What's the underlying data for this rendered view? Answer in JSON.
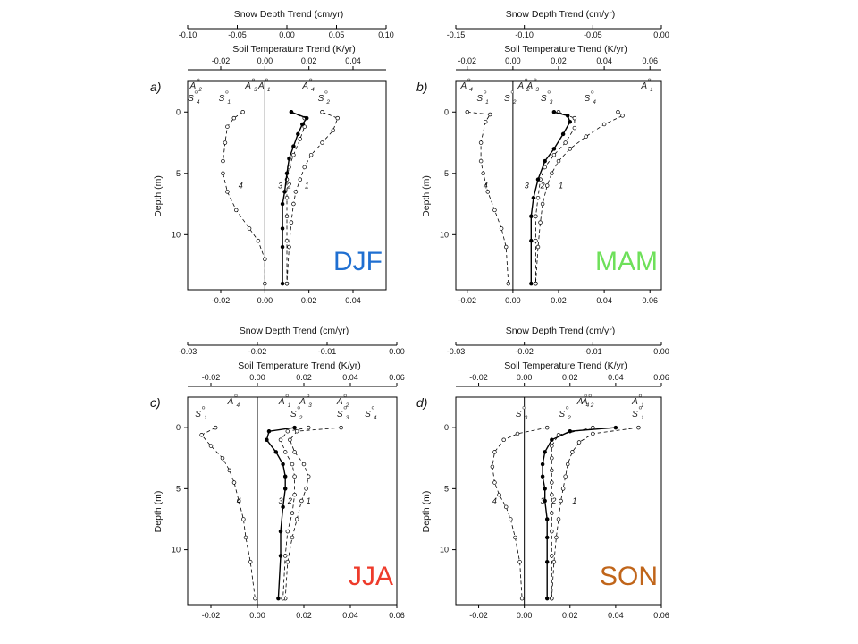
{
  "chart_data": [
    {
      "type": "line",
      "panel_label": "a)",
      "season_label": "DJF",
      "season_color": "#1f6fd1",
      "top_axis_1": {
        "title": "Snow Depth Trend  (cm/yr)",
        "ticks": [
          "-0.10",
          "-0.05",
          "0.00",
          "0.05",
          "0.10"
        ],
        "range": [
          -0.1,
          0.1
        ]
      },
      "top_axis_2": {
        "title": "Soil Temperature Trend  (K/yr)",
        "ticks": [
          "-0.02",
          "0.00",
          "0.02",
          "0.04"
        ],
        "range": [
          -0.035,
          0.055
        ]
      },
      "bottom_axis": {
        "ticks": [
          "-0.02",
          "0.00",
          "0.02",
          "0.04"
        ],
        "range": [
          -0.035,
          0.055
        ]
      },
      "ylabel": "Depth  (m)",
      "y_ticks": [
        "0",
        "5",
        "10"
      ],
      "ylim": [
        -2.5,
        14.5
      ],
      "curve_labels": [
        "4",
        "3",
        "2",
        "1"
      ],
      "curve_label_pos": [
        {
          "x": -0.011,
          "y": 6
        },
        {
          "x": 0.007,
          "y": 6
        },
        {
          "x": 0.011,
          "y": 6
        },
        {
          "x": 0.019,
          "y": 6
        }
      ],
      "series": [
        {
          "name": "1",
          "dashed": true,
          "filled": false,
          "x": [
            0.026,
            0.033,
            0.031,
            0.026,
            0.021,
            0.018,
            0.016,
            0.014,
            0.013,
            0.012,
            0.011,
            0.01
          ],
          "y": [
            0,
            0.5,
            1.5,
            2.5,
            3.5,
            4.5,
            5.5,
            6.5,
            7.5,
            9,
            11,
            14
          ]
        },
        {
          "name": "2",
          "dashed": true,
          "filled": false,
          "x": [
            0.012,
            0.018,
            0.018,
            0.016,
            0.013,
            0.011,
            0.01,
            0.01,
            0.01,
            0.01,
            0.01
          ],
          "y": [
            0,
            0.5,
            1.2,
            2.2,
            3.5,
            4.5,
            5.5,
            7,
            8.5,
            10.5,
            14
          ]
        },
        {
          "name": "3",
          "dashed": false,
          "filled": true,
          "x": [
            0.012,
            0.019,
            0.017,
            0.015,
            0.013,
            0.011,
            0.01,
            0.009,
            0.008,
            0.008,
            0.008,
            0.008
          ],
          "y": [
            0,
            0.5,
            1,
            1.8,
            2.8,
            3.8,
            5,
            6.5,
            7.5,
            9.5,
            11,
            14
          ]
        },
        {
          "name": "4",
          "dashed": true,
          "filled": false,
          "x": [
            -0.01,
            -0.014,
            -0.017,
            -0.018,
            -0.019,
            -0.019,
            -0.017,
            -0.013,
            -0.007,
            -0.003,
            0.0,
            0.0
          ],
          "y": [
            0,
            0.5,
            1.2,
            2.5,
            4,
            5,
            6.5,
            8,
            9.5,
            10.5,
            12,
            14
          ]
        }
      ],
      "markers": [
        {
          "label": "A",
          "sub": "2",
          "x": -0.031,
          "y": -1.9
        },
        {
          "label": "A",
          "sub": "3",
          "x": -0.006,
          "y": -1.9
        },
        {
          "label": "A",
          "sub": "1",
          "x": 0.0,
          "y": -1.9
        },
        {
          "label": "A",
          "sub": "4",
          "x": 0.02,
          "y": -1.9
        },
        {
          "label": "S",
          "sub": "4",
          "x": -0.032,
          "y": -0.9
        },
        {
          "label": "S",
          "sub": "1",
          "x": -0.018,
          "y": -0.9
        },
        {
          "label": "S",
          "sub": "2",
          "x": 0.027,
          "y": -0.9
        }
      ]
    },
    {
      "type": "line",
      "panel_label": "b)",
      "season_label": "MAM",
      "season_color": "#6ee05a",
      "top_axis_1": {
        "title": "Snow Depth Trend  (cm/yr)",
        "ticks": [
          "-0.15",
          "-0.10",
          "-0.05",
          "0.00"
        ],
        "range": [
          -0.15,
          0.0
        ]
      },
      "top_axis_2": {
        "title": "Soil Temperature Trend  (K/yr)",
        "ticks": [
          "-0.02",
          "0.00",
          "0.02",
          "0.04",
          "0.06"
        ],
        "range": [
          -0.025,
          0.065
        ]
      },
      "bottom_axis": {
        "ticks": [
          "-0.02",
          "0.00",
          "0.02",
          "0.04",
          "0.06"
        ],
        "range": [
          -0.025,
          0.065
        ]
      },
      "ylabel": "Depth  (m)",
      "y_ticks": [
        "0",
        "5",
        "10"
      ],
      "ylim": [
        -2.5,
        14.5
      ],
      "curve_labels": [
        "4",
        "3",
        "2",
        "1"
      ],
      "curve_label_pos": [
        {
          "x": -0.012,
          "y": 6
        },
        {
          "x": 0.006,
          "y": 6
        },
        {
          "x": 0.013,
          "y": 6
        },
        {
          "x": 0.021,
          "y": 6
        }
      ],
      "series": [
        {
          "name": "1",
          "dashed": true,
          "filled": false,
          "x": [
            0.046,
            0.048,
            0.04,
            0.032,
            0.025,
            0.02,
            0.017,
            0.015,
            0.013,
            0.012,
            0.011,
            0.01
          ],
          "y": [
            0,
            0.3,
            1,
            2,
            3,
            4,
            5,
            6,
            7.5,
            9,
            11,
            14
          ]
        },
        {
          "name": "2",
          "dashed": true,
          "filled": false,
          "x": [
            0.02,
            0.027,
            0.027,
            0.023,
            0.018,
            0.014,
            0.012,
            0.011,
            0.01,
            0.01,
            0.01
          ],
          "y": [
            0,
            0.5,
            1.3,
            2.5,
            3.5,
            4.5,
            5.5,
            7,
            8.5,
            10.5,
            14
          ]
        },
        {
          "name": "3",
          "dashed": false,
          "filled": true,
          "x": [
            0.018,
            0.024,
            0.025,
            0.022,
            0.018,
            0.014,
            0.011,
            0.009,
            0.008,
            0.008,
            0.008
          ],
          "y": [
            0,
            0.3,
            0.8,
            1.8,
            3,
            4,
            5.5,
            7,
            8.5,
            10.5,
            14
          ]
        },
        {
          "name": "4",
          "dashed": true,
          "filled": false,
          "x": [
            -0.02,
            -0.01,
            -0.012,
            -0.014,
            -0.014,
            -0.013,
            -0.011,
            -0.008,
            -0.005,
            -0.003,
            -0.002
          ],
          "y": [
            0,
            0.2,
            0.8,
            2.5,
            4,
            5,
            6.5,
            8,
            9.5,
            11,
            14
          ]
        }
      ],
      "markers": [
        {
          "label": "A",
          "sub": "4",
          "x": -0.02,
          "y": -1.9
        },
        {
          "label": "A",
          "sub": "2",
          "x": 0.005,
          "y": -1.9
        },
        {
          "label": "A",
          "sub": "3",
          "x": 0.009,
          "y": -1.9
        },
        {
          "label": "A",
          "sub": "1",
          "x": 0.059,
          "y": -1.9
        },
        {
          "label": "S",
          "sub": "1",
          "x": -0.013,
          "y": -0.9
        },
        {
          "label": "S",
          "sub": "2",
          "x": -0.001,
          "y": -0.9
        },
        {
          "label": "S",
          "sub": "3",
          "x": 0.015,
          "y": -0.9
        },
        {
          "label": "S",
          "sub": "4",
          "x": 0.034,
          "y": -0.9
        }
      ]
    },
    {
      "type": "line",
      "panel_label": "c)",
      "season_label": "JJA",
      "season_color": "#ee3b2b",
      "top_axis_1": {
        "title": "Snow Depth Trend  (cm/yr)",
        "ticks": [
          "-0.03",
          "-0.02",
          "-0.01",
          "0.00"
        ],
        "range": [
          -0.03,
          0.0
        ]
      },
      "top_axis_2": {
        "title": "Soil Temperature Trend  (K/yr)",
        "ticks": [
          "-0.02",
          "0.00",
          "0.02",
          "0.04",
          "0.06"
        ],
        "range": [
          -0.03,
          0.06
        ]
      },
      "bottom_axis": {
        "ticks": [
          "-0.02",
          "0.00",
          "0.02",
          "0.04",
          "0.06"
        ],
        "range": [
          -0.03,
          0.06
        ]
      },
      "ylabel": "Depth  (m)",
      "y_ticks": [
        "0",
        "5",
        "10"
      ],
      "ylim": [
        -2.5,
        14.5
      ],
      "curve_labels": [
        "4",
        "3",
        "2",
        "1"
      ],
      "curve_label_pos": [
        {
          "x": -0.008,
          "y": 6
        },
        {
          "x": 0.01,
          "y": 6
        },
        {
          "x": 0.014,
          "y": 6
        },
        {
          "x": 0.022,
          "y": 6
        }
      ],
      "series": [
        {
          "name": "1",
          "dashed": true,
          "filled": false,
          "x": [
            0.036,
            0.017,
            0.014,
            0.016,
            0.02,
            0.022,
            0.021,
            0.019,
            0.017,
            0.015,
            0.013,
            0.012
          ],
          "y": [
            0,
            0.3,
            1,
            2,
            3,
            4,
            5,
            6,
            7.5,
            9,
            11,
            14
          ]
        },
        {
          "name": "2",
          "dashed": true,
          "filled": false,
          "x": [
            0.022,
            0.013,
            0.01,
            0.012,
            0.015,
            0.016,
            0.016,
            0.015,
            0.013,
            0.012,
            0.011
          ],
          "y": [
            0,
            0.3,
            1,
            2,
            3,
            4,
            5.5,
            7,
            8.5,
            10.5,
            14
          ]
        },
        {
          "name": "3",
          "dashed": false,
          "filled": true,
          "x": [
            0.016,
            0.005,
            0.004,
            0.008,
            0.011,
            0.012,
            0.012,
            0.011,
            0.01,
            0.01,
            0.009
          ],
          "y": [
            0,
            0.3,
            1,
            2,
            3,
            4,
            5,
            6.5,
            8.5,
            10.5,
            14
          ]
        },
        {
          "name": "4",
          "dashed": true,
          "filled": false,
          "x": [
            -0.018,
            -0.024,
            -0.02,
            -0.015,
            -0.012,
            -0.01,
            -0.008,
            -0.006,
            -0.005,
            -0.003,
            -0.001
          ],
          "y": [
            0,
            0.6,
            1.5,
            2.5,
            3.5,
            4.5,
            6,
            7.5,
            9,
            11,
            14
          ]
        }
      ],
      "markers": [
        {
          "label": "A",
          "sub": "4",
          "x": -0.01,
          "y": -1.9
        },
        {
          "label": "A",
          "sub": "1",
          "x": 0.012,
          "y": -1.9
        },
        {
          "label": "A",
          "sub": "3",
          "x": 0.021,
          "y": -1.9
        },
        {
          "label": "A",
          "sub": "2",
          "x": 0.037,
          "y": -1.9
        },
        {
          "label": "S",
          "sub": "1",
          "x": -0.024,
          "y": -0.9
        },
        {
          "label": "S",
          "sub": "2",
          "x": 0.017,
          "y": -0.9
        },
        {
          "label": "S",
          "sub": "3",
          "x": 0.037,
          "y": -0.9
        },
        {
          "label": "S",
          "sub": "4",
          "x": 0.049,
          "y": -0.9
        }
      ]
    },
    {
      "type": "line",
      "panel_label": "d)",
      "season_label": "SON",
      "season_color": "#c0651a",
      "top_axis_1": {
        "title": "Snow Depth Trend  (cm/yr)",
        "ticks": [
          "-0.03",
          "-0.02",
          "-0.01",
          "0.00"
        ],
        "range": [
          -0.03,
          0.0
        ]
      },
      "top_axis_2": {
        "title": "Soil Temperature Trend  (K/yr)",
        "ticks": [
          "-0.02",
          "0.00",
          "0.02",
          "0.04",
          "0.06"
        ],
        "range": [
          -0.03,
          0.06
        ]
      },
      "bottom_axis": {
        "ticks": [
          "-0.02",
          "0.00",
          "0.02",
          "0.04",
          "0.06"
        ],
        "range": [
          -0.03,
          0.06
        ]
      },
      "ylabel": "Depth  (m)",
      "y_ticks": [
        "0",
        "5",
        "10"
      ],
      "ylim": [
        -2.5,
        14.5
      ],
      "curve_labels": [
        "4",
        "3",
        "2",
        "1"
      ],
      "curve_label_pos": [
        {
          "x": -0.013,
          "y": 6
        },
        {
          "x": 0.008,
          "y": 6
        },
        {
          "x": 0.013,
          "y": 6
        },
        {
          "x": 0.022,
          "y": 6
        }
      ],
      "series": [
        {
          "name": "1",
          "dashed": true,
          "filled": false,
          "x": [
            0.05,
            0.03,
            0.024,
            0.021,
            0.019,
            0.018,
            0.017,
            0.016,
            0.015,
            0.014,
            0.013,
            0.012
          ],
          "y": [
            0,
            0.5,
            1.2,
            2,
            3,
            4,
            5,
            6,
            7.5,
            9,
            11,
            14
          ]
        },
        {
          "name": "2",
          "dashed": true,
          "filled": false,
          "x": [
            0.03,
            0.015,
            0.012,
            0.012,
            0.012,
            0.012,
            0.012,
            0.012,
            0.012,
            0.012,
            0.012
          ],
          "y": [
            0,
            0.6,
            1.5,
            2.5,
            3.5,
            4.5,
            5.5,
            7,
            8.5,
            10.5,
            14
          ]
        },
        {
          "name": "3",
          "dashed": false,
          "filled": true,
          "x": [
            0.04,
            0.02,
            0.012,
            0.009,
            0.008,
            0.008,
            0.009,
            0.009,
            0.01,
            0.01,
            0.01,
            0.01
          ],
          "y": [
            0,
            0.3,
            1,
            2,
            3,
            4,
            5,
            6,
            7.5,
            9,
            11,
            14
          ]
        },
        {
          "name": "4",
          "dashed": true,
          "filled": false,
          "x": [
            0.01,
            -0.003,
            -0.009,
            -0.013,
            -0.014,
            -0.013,
            -0.011,
            -0.008,
            -0.006,
            -0.004,
            -0.002,
            -0.001
          ],
          "y": [
            0,
            0.5,
            1,
            2,
            3.2,
            4.5,
            5.5,
            6.5,
            7.5,
            9,
            11,
            14
          ]
        }
      ],
      "markers": [
        {
          "label": "A",
          "sub": "4",
          "x": 0.026,
          "y": -1.9
        },
        {
          "label": "A",
          "sub": "2",
          "x": 0.028,
          "y": -1.9
        },
        {
          "label": "A",
          "sub": "1",
          "x": 0.05,
          "y": -1.9
        },
        {
          "label": "S",
          "sub": "3",
          "x": -0.001,
          "y": -0.9
        },
        {
          "label": "S",
          "sub": "2",
          "x": 0.018,
          "y": -0.9
        },
        {
          "label": "S",
          "sub": "1",
          "x": 0.05,
          "y": -0.9
        }
      ]
    }
  ]
}
